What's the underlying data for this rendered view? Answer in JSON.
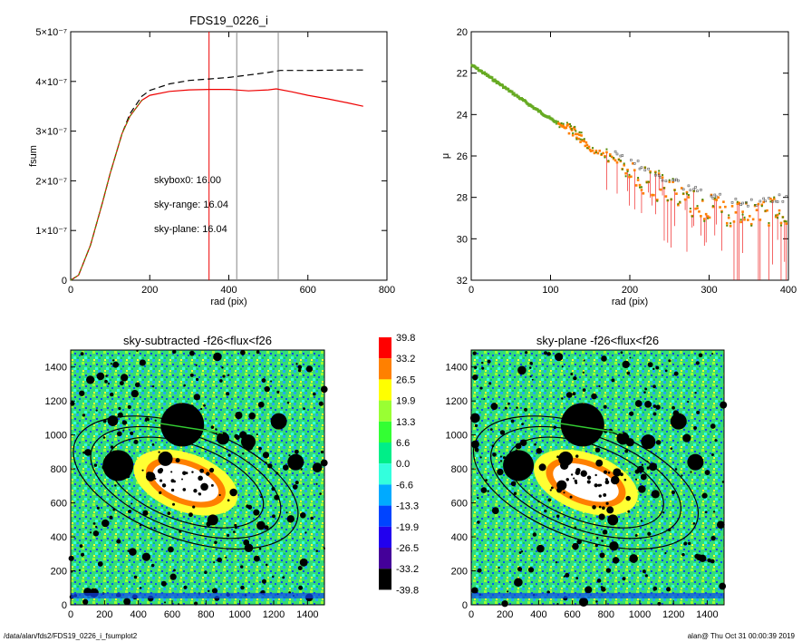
{
  "footer": {
    "path": "/data/alan/fds2/FDS19_0226_i_fsumplot2",
    "stamp": "alan@  Thu Oct 31 00:00:39 2019"
  },
  "colorbar": {
    "labels": [
      "39.8",
      "33.2",
      "26.5",
      "19.9",
      "13.3",
      "6.6",
      "0.0",
      "-6.6",
      "-13.3",
      "-19.9",
      "-26.5",
      "-33.2",
      "-39.8"
    ],
    "colors": [
      "#ff0000",
      "#ff8000",
      "#ffff00",
      "#99ff33",
      "#33ff33",
      "#00ee88",
      "#33ffdd",
      "#00aaff",
      "#0044ff",
      "#2200ee",
      "#440099",
      "#000000"
    ]
  },
  "colors": {
    "green": "#33cc33",
    "red": "#ee0000",
    "orange": "#ff7f00",
    "gray": "#888888",
    "black": "#000000"
  },
  "chart_data": [
    {
      "type": "line",
      "title": "FDS19_0226_i",
      "xlabel": "rad (pix)",
      "ylabel": "fsum",
      "xlim": [
        0,
        800
      ],
      "ylim": [
        0,
        5e-07
      ],
      "xticks": [
        "0",
        "200",
        "400",
        "600",
        "800"
      ],
      "yticks": [
        "0",
        "1×10⁻⁷",
        "2×10⁻⁷",
        "3×10⁻⁷",
        "4×10⁻⁷",
        "5×10⁻⁷"
      ],
      "annotations": [
        "skybox0: 16.00",
        "sky-range: 16.04",
        "sky-plane: 16.04"
      ],
      "vlines": [
        {
          "x": 350,
          "color": "red"
        },
        {
          "x": 420,
          "color": "gray"
        },
        {
          "x": 525,
          "color": "gray"
        }
      ],
      "series": [
        {
          "color": "#000000",
          "dash": true,
          "x": [
            0,
            20,
            50,
            80,
            100,
            130,
            150,
            180,
            200,
            250,
            300,
            350,
            400,
            450,
            500,
            530,
            600,
            700,
            740
          ],
          "y": [
            0,
            1e-08,
            7e-08,
            1.55e-07,
            2.15e-07,
            2.95e-07,
            3.35e-07,
            3.7e-07,
            3.82e-07,
            3.95e-07,
            4.02e-07,
            4.05e-07,
            4.08e-07,
            4.13e-07,
            4.18e-07,
            4.22e-07,
            4.22e-07,
            4.23e-07,
            4.23e-07
          ]
        },
        {
          "color": "#ee0000",
          "dash": false,
          "x": [
            0,
            20,
            50,
            80,
            100,
            130,
            150,
            180,
            200,
            250,
            300,
            350,
            400,
            450,
            500,
            520,
            560,
            600,
            650,
            700,
            740
          ],
          "y": [
            0,
            1e-08,
            7e-08,
            1.55e-07,
            2.15e-07,
            2.95e-07,
            3.3e-07,
            3.62e-07,
            3.72e-07,
            3.8e-07,
            3.83e-07,
            3.84e-07,
            3.84e-07,
            3.81e-07,
            3.83e-07,
            3.85e-07,
            3.79e-07,
            3.72e-07,
            3.65e-07,
            3.57e-07,
            3.5e-07
          ]
        }
      ]
    },
    {
      "type": "scatter",
      "title": "",
      "xlabel": "rad (pix)",
      "ylabel": "μ",
      "xlim": [
        0,
        400
      ],
      "ylim": [
        32,
        20
      ],
      "xticks": [
        "0",
        "100",
        "200",
        "300",
        "400"
      ],
      "yticks": [
        "20",
        "22",
        "24",
        "26",
        "28",
        "30",
        "32"
      ],
      "trend": {
        "x": [
          0,
          20,
          50,
          80,
          100,
          130,
          150,
          180,
          200,
          250,
          300,
          350,
          400
        ],
        "y": [
          21.6,
          22.1,
          22.9,
          23.7,
          24.2,
          24.9,
          25.5,
          26.2,
          26.8,
          27.8,
          28.5,
          28.9,
          28.6
        ]
      }
    },
    {
      "type": "heatmap",
      "title": "sky-subtracted -f26<flux<f26",
      "xlim": [
        0,
        1500
      ],
      "ylim": [
        0,
        1500
      ],
      "xticks": [
        "0",
        "200",
        "400",
        "600",
        "800",
        "1000",
        "1200",
        "1400"
      ],
      "yticks": [
        "0",
        "200",
        "400",
        "600",
        "800",
        "1000",
        "1200",
        "1400"
      ]
    },
    {
      "type": "heatmap",
      "title": "sky-plane -f26<flux<f26",
      "xlim": [
        0,
        1500
      ],
      "ylim": [
        0,
        1500
      ],
      "xticks": [
        "0",
        "200",
        "400",
        "600",
        "800",
        "1000",
        "1200",
        "1400"
      ],
      "yticks": [
        "0",
        "200",
        "400",
        "600",
        "800",
        "1000",
        "1200",
        "1400"
      ]
    }
  ]
}
